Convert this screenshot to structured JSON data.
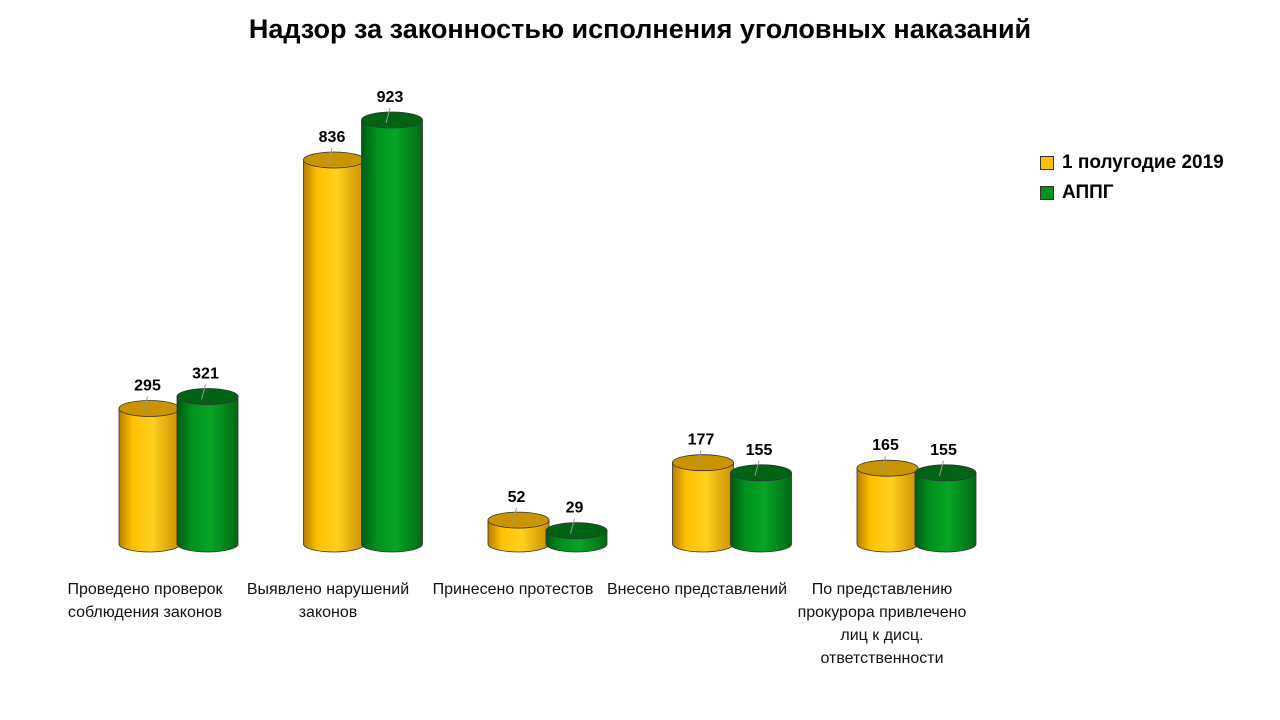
{
  "chart_data": {
    "type": "bar",
    "title": "Надзор за законностью исполнения уголовных наказаний",
    "categories": [
      "Проведено проверок соблюдения законов",
      "Выявлено нарушений законов",
      "Принесено протестов",
      "Внесено представлений",
      "По представлению прокурора привлечено лиц к дисц. ответственности"
    ],
    "series": [
      {
        "name": "1 полугодие 2019",
        "values": [
          295,
          836,
          52,
          177,
          165
        ],
        "color": "#FFC000"
      },
      {
        "name": "АППГ",
        "values": [
          321,
          923,
          29,
          155,
          155
        ],
        "color": "#00921E"
      }
    ],
    "ylim": [
      0,
      923
    ],
    "grid": false,
    "legend_position": "right"
  }
}
